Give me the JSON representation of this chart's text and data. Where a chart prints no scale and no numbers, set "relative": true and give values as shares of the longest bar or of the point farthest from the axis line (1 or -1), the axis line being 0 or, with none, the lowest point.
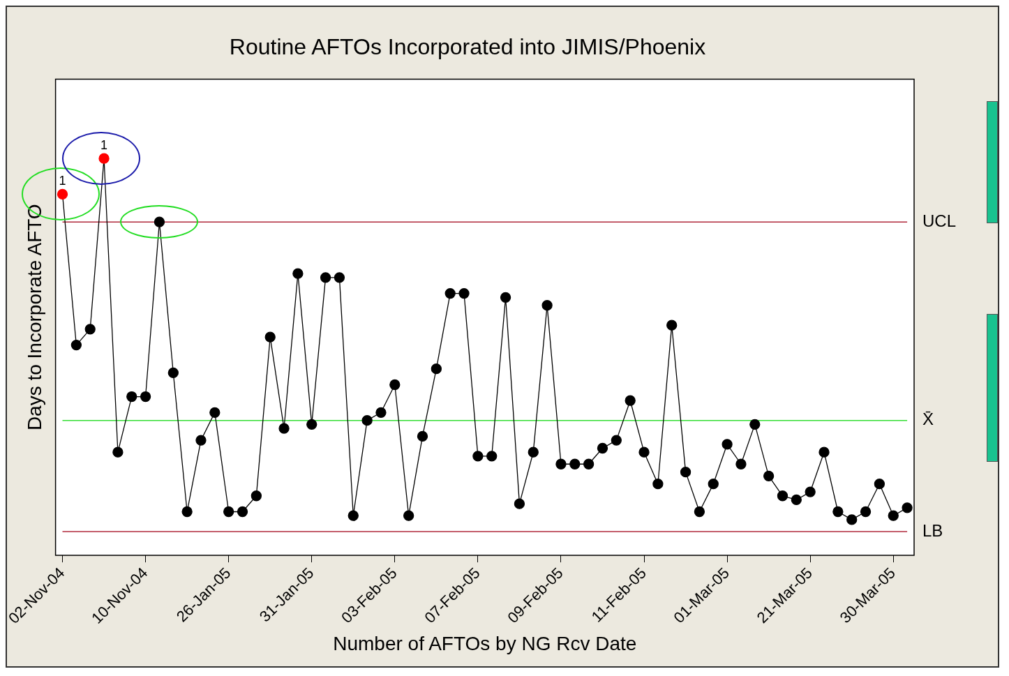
{
  "chart_data": {
    "type": "line",
    "title": "Routine AFTOs Incorporated into JIMIS/Phoenix",
    "xlabel": "Number of AFTOs by NG Rcv Date",
    "ylabel": "Days to Incorporate AFTO",
    "relative": true,
    "marker": "circle",
    "line_style": "solid",
    "legend": false,
    "categories": [
      "02-Nov-04",
      null,
      null,
      null,
      null,
      null,
      "10-Nov-04",
      null,
      null,
      null,
      null,
      null,
      "26-Jan-05",
      null,
      null,
      null,
      null,
      null,
      "31-Jan-05",
      null,
      null,
      null,
      null,
      null,
      "03-Feb-05",
      null,
      null,
      null,
      null,
      null,
      "07-Feb-05",
      null,
      null,
      null,
      null,
      null,
      "09-Feb-05",
      null,
      null,
      null,
      null,
      null,
      "11-Feb-05",
      null,
      null,
      null,
      null,
      null,
      "01-Mar-05",
      null,
      null,
      null,
      null,
      null,
      "21-Mar-05",
      null,
      null,
      null,
      null,
      null,
      "30-Mar-05",
      null
    ],
    "series": [
      {
        "color": "#000000",
        "colors": [
          "#ff0000",
          "#000000",
          "#000000",
          "#ff0000",
          "#000000",
          "#000000",
          "#000000",
          "#000000",
          "#000000",
          "#000000",
          "#000000",
          "#000000",
          "#000000",
          "#000000",
          "#000000",
          "#000000",
          "#000000",
          "#000000",
          "#000000",
          "#000000",
          "#000000",
          "#000000",
          "#000000",
          "#000000",
          "#000000",
          "#000000",
          "#000000",
          "#000000",
          "#000000",
          "#000000",
          "#000000",
          "#000000",
          "#000000",
          "#000000",
          "#000000",
          "#000000",
          "#000000",
          "#000000",
          "#000000",
          "#000000",
          "#000000",
          "#000000",
          "#000000",
          "#000000",
          "#000000",
          "#000000",
          "#000000",
          "#000000",
          "#000000",
          "#000000",
          "#000000",
          "#000000",
          "#000000",
          "#000000",
          "#000000",
          "#000000",
          "#000000",
          "#000000",
          "#000000",
          "#000000",
          "#000000",
          "#000000"
        ],
        "values": [
          0.91,
          0.53,
          0.57,
          1,
          0.26,
          0.4,
          0.4,
          0.84,
          0.46,
          0.11,
          0.29,
          0.36,
          0.11,
          0.11,
          0.15,
          0.55,
          0.32,
          0.71,
          0.33,
          0.7,
          0.7,
          0.1,
          0.34,
          0.36,
          0.43,
          0.1,
          0.3,
          0.47,
          0.66,
          0.66,
          0.25,
          0.25,
          0.65,
          0.13,
          0.26,
          0.63,
          0.23,
          0.23,
          0.23,
          0.27,
          0.29,
          0.39,
          0.26,
          0.18,
          0.58,
          0.21,
          0.11,
          0.18,
          0.28,
          0.23,
          0.33,
          0.2,
          0.15,
          0.14,
          0.16,
          0.26,
          0.11,
          0.09,
          0.11,
          0.18,
          0.1,
          0.12
        ]
      }
    ],
    "ref_lines": [
      {
        "axis": "y",
        "value": 0.84,
        "label": "UCL",
        "color": "#b0283a"
      },
      {
        "axis": "y",
        "value": 0.34,
        "label": "X̄",
        "color": "#33dd33"
      },
      {
        "axis": "y",
        "value": 0.06,
        "label": "LB",
        "color": "#b0283a"
      }
    ],
    "annotations": [
      {
        "text": "1",
        "x": "02-Nov-04",
        "y": 0.91
      },
      {
        "text": "1",
        "y": 1
      }
    ]
  }
}
